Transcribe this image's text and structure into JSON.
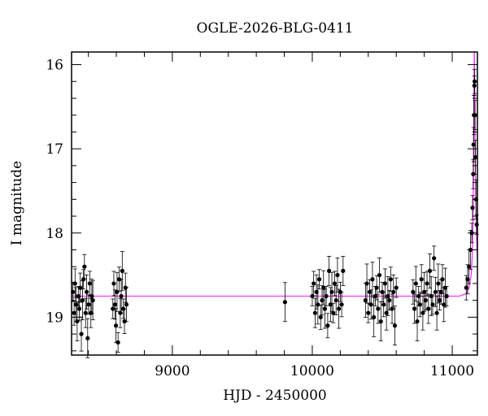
{
  "chart_data": {
    "type": "scatter",
    "title": "OGLE-2026-BLG-0411",
    "xlabel": "HJD - 2450000",
    "ylabel": "I magnitude",
    "xlim": [
      8280,
      11180
    ],
    "ylim": [
      19.45,
      15.85
    ],
    "y_inverted": true,
    "grid": false,
    "x_ticks": [
      9000,
      10000,
      11000
    ],
    "y_ticks": [
      16,
      17,
      18,
      19
    ],
    "colors": {
      "points": "#000000",
      "model": "#ff33ff",
      "frame": "#000000"
    },
    "model_curve": {
      "baseline": 18.75,
      "x": [
        8280,
        11050,
        11100,
        11120,
        11135,
        11142,
        11148,
        11152,
        11155,
        11157,
        11158,
        11160,
        11163,
        11168,
        11175,
        11180
      ],
      "y": [
        18.75,
        18.75,
        18.72,
        18.65,
        18.5,
        18.3,
        17.9,
        17.2,
        16.5,
        16.0,
        15.85,
        16.2,
        16.9,
        17.6,
        18.1,
        18.3
      ]
    },
    "series": [
      {
        "x": [
          8290,
          8298,
          8305,
          8312,
          8320,
          8328,
          8335,
          8342,
          8350,
          8358,
          8365,
          8372,
          8380,
          8388,
          8395,
          8402,
          8410,
          8418,
          8425,
          8432,
          8575,
          8582,
          8590,
          8597,
          8605,
          8612,
          8620,
          8628,
          8635,
          8642,
          8650,
          8658,
          8665,
          8672,
          9805,
          10000,
          10010,
          10020,
          10030,
          10040,
          10050,
          10060,
          10070,
          10080,
          10090,
          10100,
          10110,
          10120,
          10130,
          10140,
          10150,
          10160,
          10170,
          10180,
          10190,
          10200,
          10210,
          10220,
          10380,
          10390,
          10400,
          10410,
          10420,
          10430,
          10440,
          10450,
          10460,
          10470,
          10480,
          10490,
          10500,
          10510,
          10520,
          10530,
          10540,
          10550,
          10560,
          10570,
          10580,
          10590,
          10600,
          10720,
          10730,
          10740,
          10750,
          10760,
          10770,
          10780,
          10790,
          10800,
          10810,
          10820,
          10830,
          10840,
          10850,
          10860,
          10870,
          10880,
          10890,
          10900,
          10910,
          10920,
          10930,
          10940,
          10950,
          10960,
          11100,
          11110,
          11120,
          11130,
          11140,
          11145,
          11150,
          11152,
          11155,
          11158,
          11160,
          11163,
          11166,
          11170,
          11175
        ],
        "y": [
          18.7,
          18.95,
          18.6,
          18.85,
          19.05,
          18.75,
          18.9,
          18.65,
          19.2,
          18.8,
          18.55,
          18.4,
          18.95,
          18.7,
          19.25,
          18.85,
          18.6,
          18.95,
          18.75,
          18.8,
          18.9,
          18.6,
          18.85,
          19.1,
          18.7,
          19.3,
          18.55,
          18.95,
          18.75,
          18.45,
          18.9,
          19.05,
          18.65,
          18.85,
          18.82,
          18.75,
          18.6,
          18.95,
          18.7,
          18.85,
          18.55,
          19.0,
          18.8,
          18.65,
          18.9,
          18.75,
          19.1,
          18.45,
          18.85,
          18.7,
          18.95,
          18.6,
          18.8,
          18.5,
          18.9,
          18.7,
          18.85,
          18.45,
          18.8,
          18.6,
          18.95,
          18.7,
          18.85,
          18.55,
          19.0,
          18.75,
          18.65,
          18.9,
          18.5,
          19.05,
          18.7,
          18.85,
          18.6,
          18.95,
          18.75,
          18.8,
          18.55,
          18.9,
          18.7,
          19.1,
          18.65,
          18.7,
          18.9,
          18.6,
          19.05,
          18.75,
          18.85,
          18.55,
          18.95,
          18.7,
          18.8,
          18.6,
          18.9,
          18.45,
          18.75,
          18.85,
          18.3,
          18.7,
          18.95,
          18.6,
          18.8,
          18.7,
          18.55,
          18.85,
          18.65,
          18.75,
          18.65,
          18.55,
          18.4,
          18.2,
          18.0,
          17.7,
          17.3,
          16.95,
          16.6,
          16.25,
          16.2,
          16.6,
          17.1,
          17.6,
          17.9
        ]
      }
    ]
  }
}
